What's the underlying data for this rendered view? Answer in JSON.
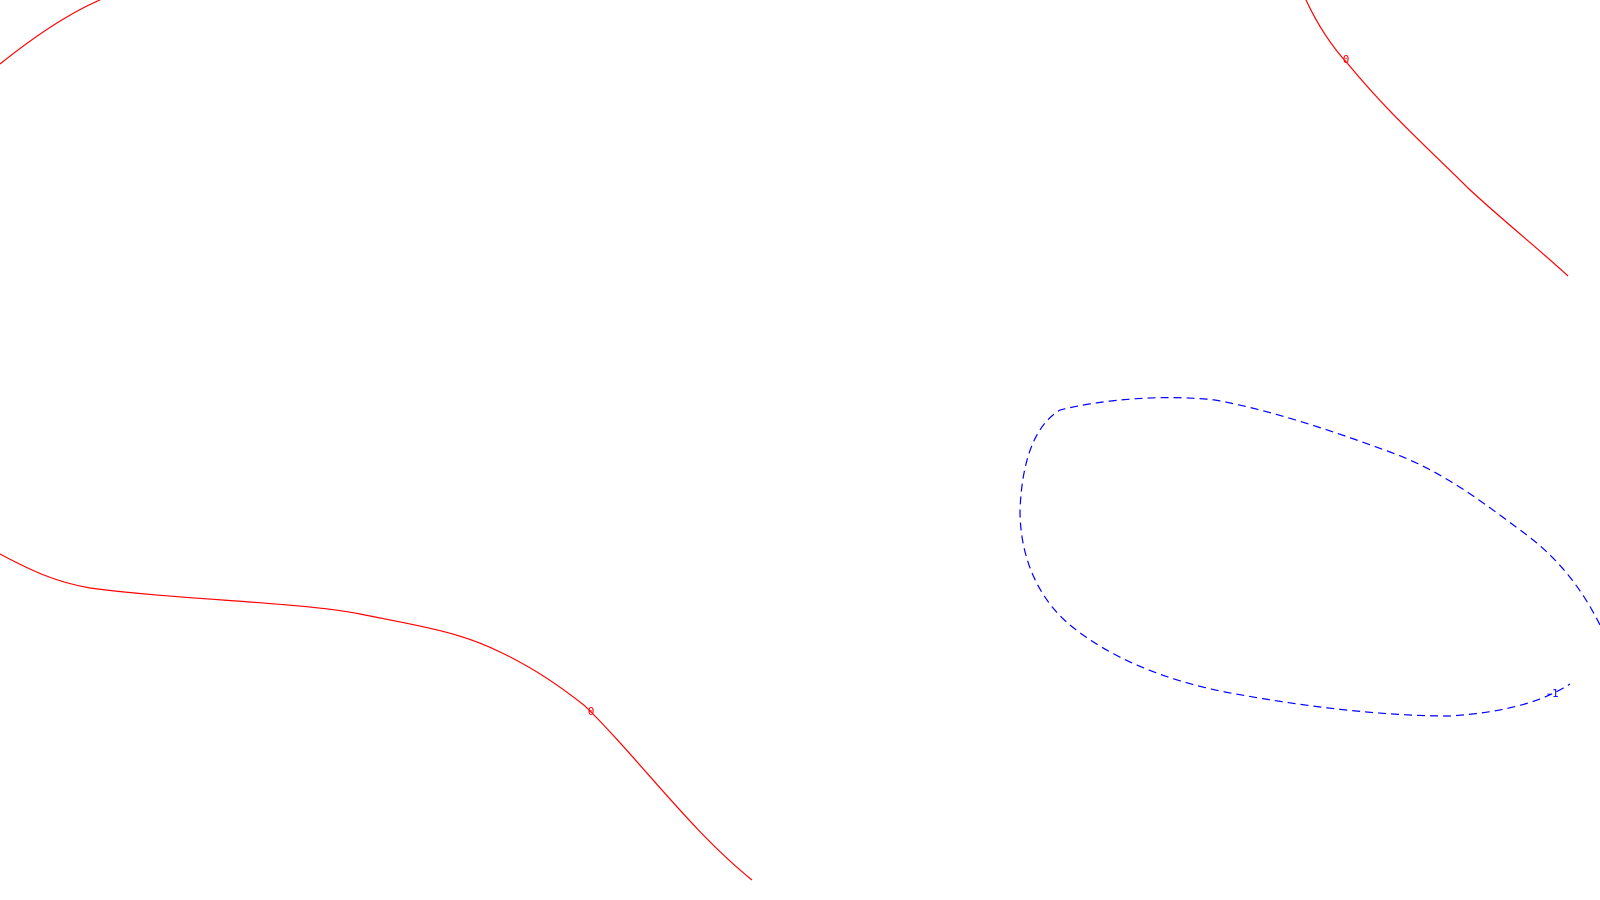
{
  "chart_data": {
    "type": "contour",
    "title": "",
    "xlabel": "",
    "ylabel": "",
    "grid": false,
    "legend": "none",
    "contours": [
      {
        "level_label": "0",
        "color": "#ff0000",
        "style": "solid"
      },
      {
        "level_label": "-1",
        "color": "#0000ff",
        "style": "dashed"
      }
    ]
  }
}
